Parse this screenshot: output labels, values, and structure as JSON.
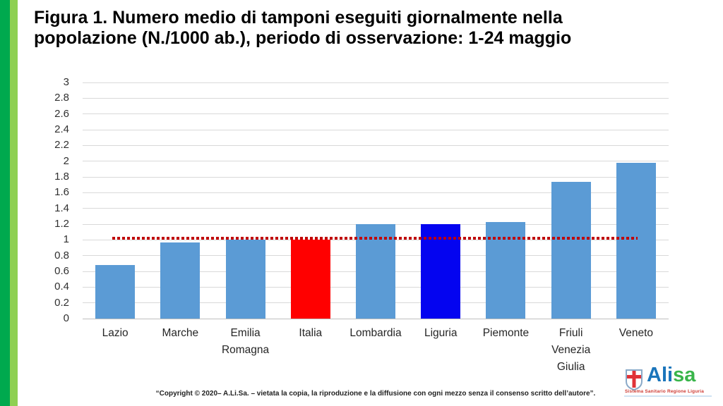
{
  "slide": {
    "title_lines": [
      "Figura 1. Numero medio di tamponi eseguiti giornalmente nella",
      "popolazione (N./1000 ab.), periodo di osservazione: 1-24 maggio"
    ],
    "footer_text": "“Copyright © 2020– A.Li.Sa. – vietata la copia, la riproduzione e la diffusione con ogni mezzo senza il consenso scritto dell’autore”.",
    "stripe_colors": {
      "dark_green": "#00A94E",
      "light_green": "#8ED052"
    }
  },
  "logo": {
    "text_ali": "Ali",
    "text_sa": "sa",
    "tagline": "Sistema Sanitario Regione Liguria",
    "colors": {
      "ali": "#1B75BB",
      "sa": "#39B54A",
      "tagline": "#CE3B33",
      "cross": "#E03238",
      "shield_border": "#8AA9C8",
      "underline": "#CFE3F3"
    }
  },
  "chart_data": {
    "type": "bar",
    "title": "",
    "xlabel": "",
    "ylabel": "",
    "categories": [
      "Lazio",
      "Marche",
      "Emilia Romagna",
      "Italia",
      "Lombardia",
      "Liguria",
      "Piemonte",
      "Friuli Venezia Giulia",
      "Veneto"
    ],
    "values": [
      0.68,
      0.97,
      1.0,
      1.0,
      1.2,
      1.2,
      1.23,
      1.74,
      1.98
    ],
    "bar_colors": [
      "#5B9BD5",
      "#5B9BD5",
      "#5B9BD5",
      "#FF0000",
      "#5B9BD5",
      "#0404F0",
      "#5B9BD5",
      "#5B9BD5",
      "#5B9BD5"
    ],
    "default_bar_color": "#5B9BD5",
    "reference_line": {
      "value": 1.02,
      "color": "#C00000",
      "style": "dotted"
    },
    "ylim": [
      0,
      3
    ],
    "yticks": [
      "0",
      "0.2",
      "0.4",
      "0.6",
      "0.8",
      "1",
      "1.2",
      "1.4",
      "1.6",
      "1.8",
      "2",
      "2.2",
      "2.4",
      "2.6",
      "2.8",
      "3"
    ],
    "grid": true,
    "gridline_color": "#D9D9D9",
    "axis_text_color": "#303030",
    "legend": "none"
  }
}
